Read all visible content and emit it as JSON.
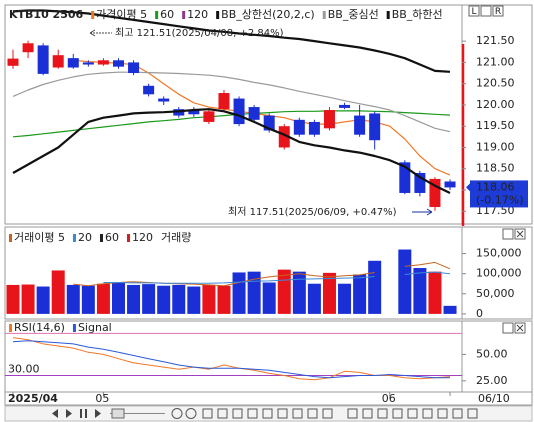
{
  "controls": [
    "L",
    "R"
  ],
  "chart_data": [
    {
      "type": "candlestick",
      "title": "KTB10 2506",
      "up_color": "#e8141c",
      "down_color": "#1a2fd6",
      "ylim": [
        117.2,
        122.35
      ],
      "yticks": [
        {
          "value": 117.5,
          "label": "117.50"
        },
        {
          "value": 118,
          "label": "118.00"
        },
        {
          "value": 118.5,
          "label": "118.50"
        },
        {
          "value": 119,
          "label": "119.00"
        },
        {
          "value": 119.5,
          "label": "119.50"
        },
        {
          "value": 120,
          "label": "120.00"
        },
        {
          "value": 120.5,
          "label": "120.50"
        },
        {
          "value": 121,
          "label": "121.00"
        },
        {
          "value": 121.5,
          "label": "121.50"
        }
      ],
      "candles": [
        {
          "open": 120.92,
          "high": 121.3,
          "low": 120.85,
          "close": 121.09
        },
        {
          "open": 121.24,
          "high": 121.51,
          "low": 121.1,
          "close": 121.45
        },
        {
          "open": 121.4,
          "high": 121.45,
          "low": 120.7,
          "close": 120.73
        },
        {
          "open": 120.88,
          "high": 121.3,
          "low": 120.85,
          "close": 121.17
        },
        {
          "open": 121.1,
          "high": 121.2,
          "low": 120.85,
          "close": 120.88
        },
        {
          "open": 121.0,
          "high": 121.05,
          "low": 120.9,
          "close": 120.95
        },
        {
          "open": 120.95,
          "high": 121.1,
          "low": 120.92,
          "close": 121.05
        },
        {
          "open": 121.05,
          "high": 121.1,
          "low": 120.85,
          "close": 120.9
        },
        {
          "open": 121.0,
          "high": 121.05,
          "low": 120.7,
          "close": 120.75
        },
        {
          "open": 120.45,
          "high": 120.5,
          "low": 120.2,
          "close": 120.25
        },
        {
          "open": 120.15,
          "high": 120.2,
          "low": 120.0,
          "close": 120.08
        },
        {
          "open": 119.9,
          "high": 119.95,
          "low": 119.7,
          "close": 119.75
        },
        {
          "open": 119.88,
          "high": 119.95,
          "low": 119.72,
          "close": 119.78
        },
        {
          "open": 119.6,
          "high": 119.9,
          "low": 119.55,
          "close": 119.85
        },
        {
          "open": 119.9,
          "high": 120.35,
          "low": 119.85,
          "close": 120.28
        },
        {
          "open": 120.15,
          "high": 120.2,
          "low": 119.5,
          "close": 119.55
        },
        {
          "open": 119.95,
          "high": 120.0,
          "low": 119.6,
          "close": 119.65
        },
        {
          "open": 119.75,
          "high": 119.8,
          "low": 119.35,
          "close": 119.4
        },
        {
          "open": 119.0,
          "high": 119.55,
          "low": 118.95,
          "close": 119.5
        },
        {
          "open": 119.65,
          "high": 119.7,
          "low": 119.25,
          "close": 119.3
        },
        {
          "open": 119.6,
          "high": 119.65,
          "low": 119.25,
          "close": 119.3
        },
        {
          "open": 119.45,
          "high": 119.95,
          "low": 119.4,
          "close": 119.88
        },
        {
          "open": 120.0,
          "high": 120.05,
          "low": 119.9,
          "close": 119.93
        },
        {
          "open": 119.75,
          "high": 120.0,
          "low": 119.25,
          "close": 119.3
        },
        {
          "open": 119.8,
          "high": 119.85,
          "low": 118.95,
          "close": 119.17
        },
        null,
        {
          "open": 118.65,
          "high": 118.7,
          "low": 117.9,
          "close": 117.93
        },
        {
          "open": 118.4,
          "high": 118.45,
          "low": 117.85,
          "close": 117.93
        },
        {
          "open": 117.6,
          "high": 118.3,
          "low": 117.51,
          "close": 118.26
        },
        {
          "open": 118.2,
          "high": 118.25,
          "low": 118.0,
          "close": 118.06
        }
      ],
      "series": [
        {
          "name": "가격이평 5",
          "color": "#f07828",
          "values": [
            null,
            null,
            null,
            null,
            121.05,
            121.02,
            121.0,
            120.98,
            120.95,
            120.75,
            120.5,
            120.25,
            120.05,
            119.95,
            119.9,
            119.85,
            119.8,
            119.75,
            119.7,
            119.6,
            119.55,
            119.55,
            119.6,
            119.65,
            119.6,
            119.5,
            119.2,
            118.8,
            118.5,
            118.35
          ]
        },
        {
          "name": "60",
          "color": "#1a9a1a",
          "values": [
            119.25,
            119.28,
            119.32,
            119.36,
            119.4,
            119.44,
            119.48,
            119.52,
            119.56,
            119.6,
            119.63,
            119.66,
            119.7,
            119.72,
            119.75,
            119.78,
            119.8,
            119.82,
            119.84,
            119.85,
            119.85,
            119.86,
            119.86,
            119.86,
            119.85,
            119.84,
            119.82,
            119.8,
            119.78,
            119.76
          ]
        },
        {
          "name": "120",
          "color": "#8a3a8a"
        },
        {
          "name": "BB_상한선(20,2,c)",
          "color": "#111111",
          "values": [
            122.2,
            122.22,
            122.22,
            122.2,
            122.18,
            122.15,
            122.1,
            122.05,
            122.0,
            121.95,
            121.9,
            121.85,
            121.8,
            121.75,
            121.72,
            121.68,
            121.65,
            121.62,
            121.58,
            121.55,
            121.5,
            121.45,
            121.4,
            121.35,
            121.28,
            121.2,
            121.1,
            120.95,
            120.8,
            120.78
          ]
        },
        {
          "name": "BB_중심선",
          "color": "#9a9a9a",
          "values": [
            120.2,
            120.35,
            120.48,
            120.58,
            120.66,
            120.72,
            120.75,
            120.77,
            120.77,
            120.76,
            120.75,
            120.74,
            120.72,
            120.7,
            120.66,
            120.6,
            120.53,
            120.47,
            120.4,
            120.32,
            120.25,
            120.18,
            120.1,
            120.03,
            119.96,
            119.88,
            119.75,
            119.6,
            119.45,
            119.37
          ]
        },
        {
          "name": "BB_하한선",
          "color": "#111111",
          "values": [
            118.4,
            118.6,
            118.8,
            119.0,
            119.3,
            119.6,
            119.7,
            119.75,
            119.8,
            119.82,
            119.83,
            119.85,
            119.88,
            119.9,
            119.85,
            119.75,
            119.6,
            119.44,
            119.3,
            119.13,
            119.05,
            119.0,
            118.93,
            118.88,
            118.8,
            118.7,
            118.55,
            118.3,
            118.1,
            117.93
          ]
        }
      ],
      "annotations": [
        "최고 121.51(2025/04/08, +2.84%)",
        "최저 117.51(2025/06/09, +0.47%)"
      ],
      "last_value": 118.06,
      "last_label": "118.06",
      "last_change": "(-0.17%)",
      "last_color": "#1d3bd6"
    },
    {
      "type": "bar",
      "up_color": "#e8141c",
      "down_color": "#1a2fd6",
      "ylim": [
        -12700,
        216000
      ],
      "yticks": [
        0,
        {
          "value": 50000,
          "label": "50,000"
        },
        {
          "value": 100000,
          "label": "100,000"
        },
        {
          "value": 150000,
          "label": "150,000"
        }
      ],
      "series": [
        {
          "name": "거래이평 5",
          "color": "#c8641e",
          "values": [
            null,
            null,
            null,
            null,
            74000,
            70000,
            75000,
            78000,
            80000,
            78000,
            76000,
            75000,
            74000,
            72000,
            70000,
            78000,
            86000,
            92000,
            96000,
            100000,
            95000,
            92000,
            95000,
            97000,
            103000,
            null,
            118000,
            122000,
            128000,
            112000
          ]
        },
        {
          "name": "20",
          "color": "#3a8ad8",
          "values": [
            null,
            null,
            null,
            null,
            null,
            null,
            78000,
            78000,
            77000,
            77000,
            76000,
            76000,
            76000,
            76000,
            77000,
            79000,
            81000,
            82000,
            84000,
            86000,
            87000,
            88000,
            89000,
            90000,
            93000,
            null,
            98000,
            102000,
            104000,
            100000
          ]
        },
        {
          "name": "60",
          "color": "#222222"
        },
        {
          "name": "120",
          "color": "#d02020"
        },
        {
          "name": "거래량",
          "kind": "bar",
          "values": [
            72000,
            73000,
            68000,
            108000,
            72000,
            70000,
            75000,
            78000,
            72000,
            74000,
            70000,
            72000,
            68000,
            72000,
            70000,
            103000,
            105000,
            78000,
            110000,
            105000,
            75000,
            102000,
            75000,
            98000,
            132000,
            null,
            160000,
            114000,
            105000,
            20000
          ]
        }
      ]
    },
    {
      "type": "line",
      "ylim": [
        14.4,
        81.7
      ],
      "yticks": [
        {
          "value": 25,
          "label": "25.00"
        },
        {
          "value": 50,
          "label": "50.00"
        }
      ],
      "ref_lines": [
        {
          "value": 70,
          "color": "#e070b0"
        },
        {
          "value": 30,
          "label": "30.00",
          "color": "#a040c0"
        }
      ],
      "series": [
        {
          "name": "RSI(14,6)",
          "color": "#f07828",
          "values": [
            66,
            64,
            60,
            58,
            56,
            52,
            50,
            46,
            42,
            40,
            38,
            36,
            38,
            36,
            40,
            37,
            35,
            32,
            30,
            27,
            26,
            28,
            34,
            33,
            30,
            30,
            28,
            27,
            28,
            29
          ]
        },
        {
          "name": "Signal",
          "color": "#2a5ad8",
          "values": [
            62,
            63,
            62,
            61,
            60,
            57,
            55,
            52,
            49,
            46,
            43,
            40,
            38,
            37,
            37,
            37,
            36,
            35,
            33,
            31,
            29,
            28,
            29,
            30,
            30,
            31,
            30,
            29,
            28,
            28
          ]
        }
      ],
      "categories": [
        "2025/04",
        null,
        null,
        null,
        null,
        null,
        "05",
        null,
        null,
        null,
        null,
        null,
        null,
        null,
        null,
        null,
        null,
        null,
        null,
        null,
        null,
        null,
        null,
        null,
        null,
        "06",
        null,
        null,
        null,
        "06/10"
      ]
    }
  ]
}
